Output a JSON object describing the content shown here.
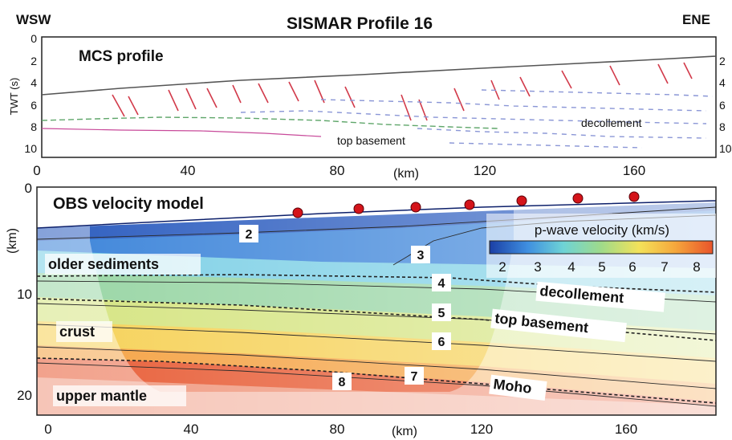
{
  "header": {
    "left": "WSW",
    "title": "SISMAR Profile 16",
    "right": "ENE"
  },
  "mcs": {
    "title": "MCS profile",
    "ylabel": "TWT (s)",
    "yticks": [
      "0",
      "2",
      "4",
      "6",
      "8",
      "10"
    ],
    "yticks_right": [
      "2",
      "4",
      "6",
      "8",
      "10"
    ],
    "xticks": [
      "0",
      "40",
      "80",
      "120",
      "160"
    ],
    "xunit": "(km)",
    "annotations": {
      "top_basement": "top basement",
      "decollement": "decollement"
    }
  },
  "obs": {
    "title": "OBS velocity model",
    "ylabel": "(km)",
    "yticks": [
      "0",
      "10",
      "20"
    ],
    "xticks": [
      "0",
      "40",
      "80",
      "120",
      "160"
    ],
    "xunit": "(km)",
    "labels": {
      "older_sediments": "older sediments",
      "crust": "crust",
      "upper_mantle": "upper mantle",
      "decollement": "decollement",
      "top_basement": "top basement",
      "moho": "Moho"
    },
    "contours": [
      "2",
      "3",
      "4",
      "5",
      "6",
      "7",
      "8"
    ],
    "colorbar": {
      "title": "p-wave velocity (km/s)",
      "ticks": [
        "2",
        "3",
        "4",
        "5",
        "6",
        "7",
        "8"
      ],
      "colors": [
        "#1b3fa5",
        "#3f8fe0",
        "#6ed3d6",
        "#9fdb8a",
        "#f3e25a",
        "#f5a83c",
        "#e9542b"
      ]
    },
    "obs_marker_color": "#d4141a"
  }
}
